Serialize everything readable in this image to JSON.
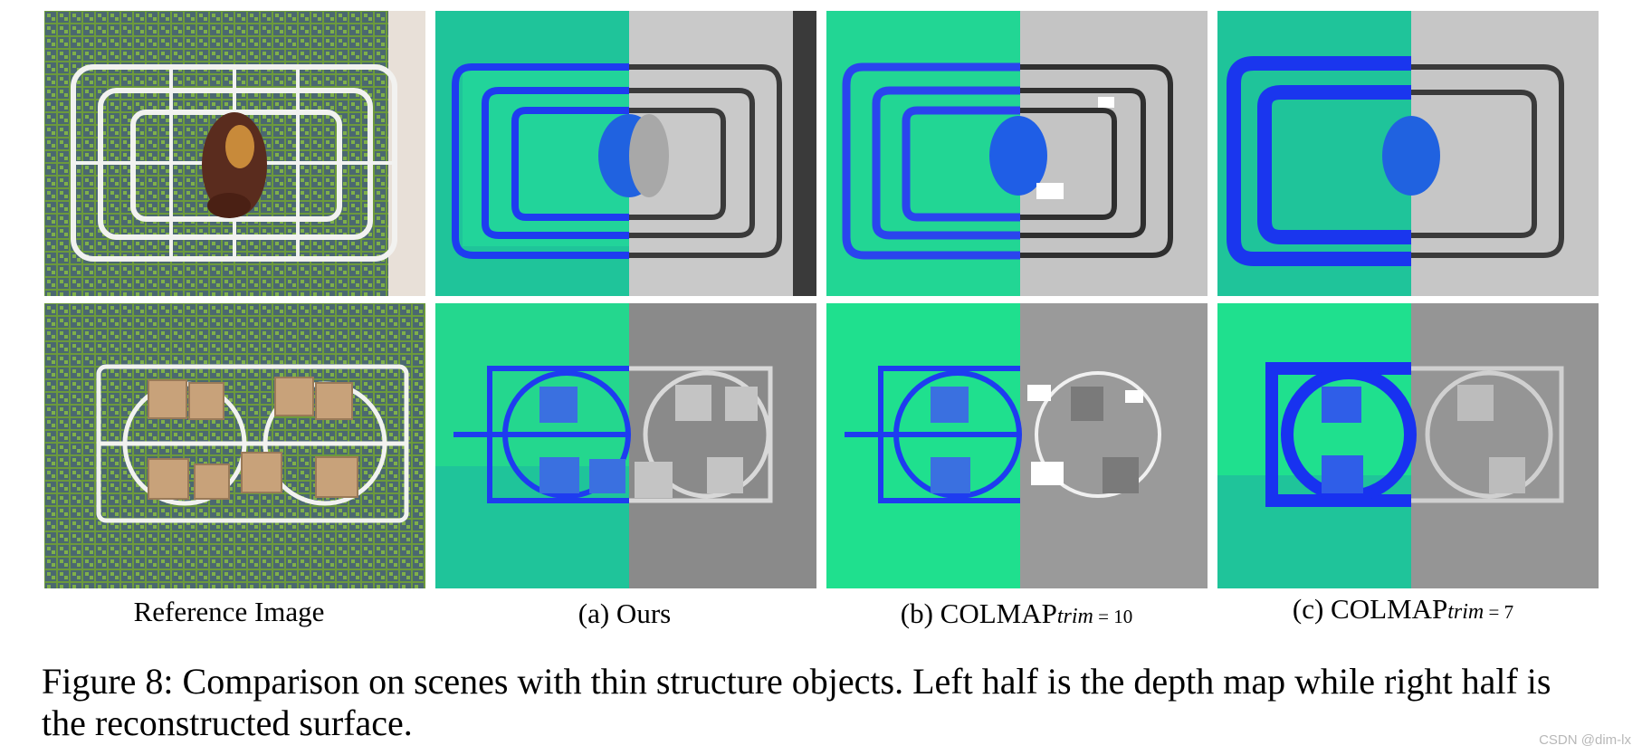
{
  "figure": {
    "columns": [
      {
        "label": "Reference Image",
        "main": "",
        "sub": "",
        "eq": ""
      },
      {
        "label": "(a) Ours",
        "main": "",
        "sub": "",
        "eq": ""
      },
      {
        "label": "",
        "main": "(b) COLMAP",
        "sub": "trim",
        "eq": " = 10"
      },
      {
        "label": "",
        "main": "(c) COLMAP",
        "sub": "trim",
        "eq": " = 7"
      }
    ],
    "caption": "Figure 8: Comparison on scenes with thin structure objects. Left half is the depth map while right half is the reconstructed surface.",
    "watermark": "CSDN @dim-lx"
  }
}
